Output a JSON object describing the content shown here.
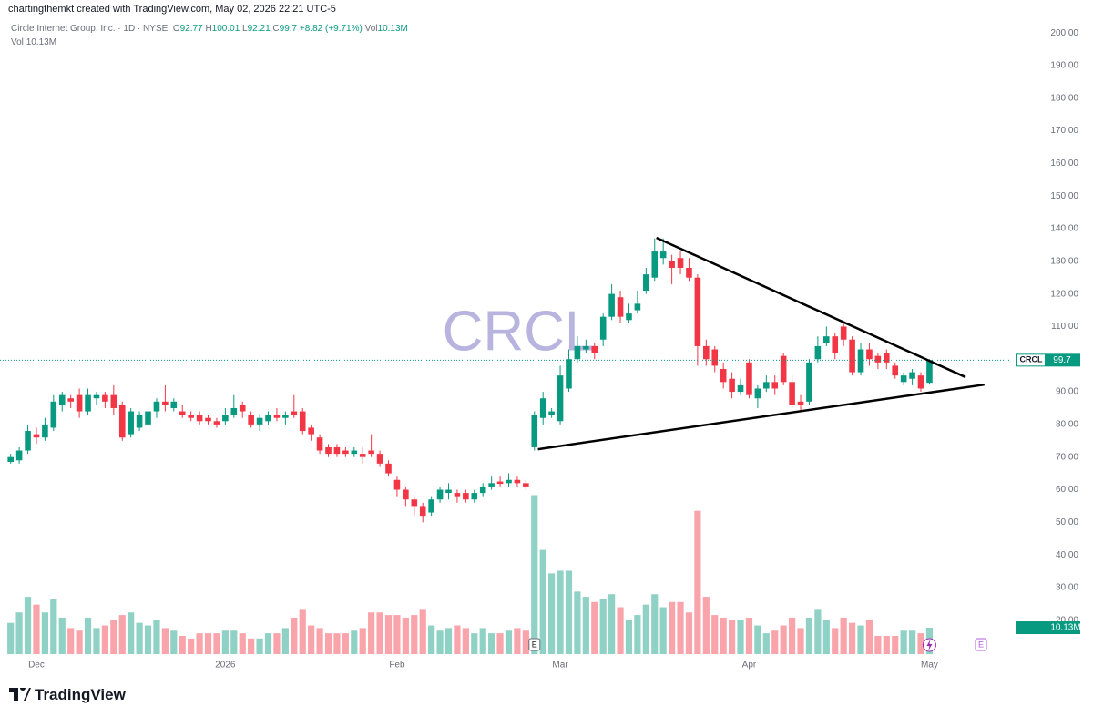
{
  "header": "chartingthemkt created with TradingView.com, May 02, 2026 22:21 UTC-5",
  "footer": "TradingView",
  "chart_data": {
    "type": "candlestick",
    "symbol": "CRCL",
    "title": "Circle Internet Group, Inc. · 1D · NYSE",
    "legend_prefixes": [
      "O",
      "H",
      "L",
      "C"
    ],
    "change": "+8.82 (+9.71%)",
    "categories": [
      null,
      null,
      null,
      "Dec",
      null,
      null,
      null,
      null,
      null,
      null,
      null,
      null,
      null,
      null,
      null,
      null,
      null,
      null,
      null,
      null,
      null,
      null,
      null,
      null,
      null,
      "2026",
      null,
      null,
      null,
      null,
      null,
      null,
      null,
      null,
      null,
      null,
      null,
      null,
      null,
      null,
      null,
      null,
      null,
      null,
      null,
      "Feb",
      null,
      null,
      null,
      null,
      null,
      null,
      null,
      null,
      null,
      null,
      null,
      null,
      null,
      null,
      null,
      null,
      null,
      null,
      "Mar",
      null,
      null,
      null,
      null,
      null,
      null,
      null,
      null,
      null,
      null,
      null,
      null,
      null,
      null,
      null,
      null,
      null,
      null,
      null,
      null,
      null,
      "Apr",
      null,
      null,
      null,
      null,
      null,
      null,
      null,
      null,
      null,
      null,
      null,
      null,
      null,
      null,
      null,
      null,
      null,
      null,
      null,
      null,
      "May"
    ],
    "open": [
      68.5,
      69,
      72,
      77,
      76,
      79,
      86,
      88,
      89,
      84,
      88,
      89,
      89,
      86,
      77,
      79,
      80,
      84,
      87,
      85,
      84,
      83,
      83,
      82,
      81,
      81,
      83,
      86,
      83,
      80,
      81,
      83,
      82,
      84,
      84,
      79,
      76,
      73,
      73,
      72,
      71,
      71,
      72,
      71,
      68,
      63,
      60,
      57,
      55,
      53,
      57,
      59,
      59,
      59,
      57,
      59,
      61,
      62.5,
      62,
      63,
      62,
      73,
      82,
      83,
      81,
      91,
      100,
      103,
      104,
      106,
      113,
      119,
      112,
      115,
      121,
      125,
      131,
      130,
      131,
      128,
      125,
      104,
      103,
      97,
      94,
      90,
      99,
      88,
      91,
      93,
      101,
      93,
      87,
      87,
      100,
      105,
      107,
      110,
      106,
      96,
      103,
      101,
      102,
      98,
      93,
      94,
      95,
      92.77
    ],
    "high": [
      71,
      73,
      80,
      79,
      82,
      89,
      90,
      89,
      91,
      91,
      90,
      90,
      92,
      87,
      85,
      84,
      86,
      88,
      92,
      88,
      86,
      84,
      84,
      83,
      82,
      85,
      89,
      87,
      84,
      83,
      84,
      85,
      84,
      89,
      85,
      80,
      77,
      74,
      74,
      73,
      73,
      73,
      77,
      72,
      69,
      64,
      61,
      58,
      56,
      58,
      61,
      62,
      60,
      60,
      60,
      62,
      64,
      64,
      65,
      64,
      63,
      84,
      90,
      85,
      98,
      103,
      107,
      106,
      105,
      114,
      123,
      121,
      117,
      121,
      128,
      137,
      137,
      132,
      133,
      131,
      126,
      106,
      104,
      99,
      96,
      94,
      100,
      92,
      95,
      95,
      102,
      95,
      89,
      100,
      107,
      110,
      108,
      111,
      107,
      105,
      105,
      102,
      103,
      99,
      96,
      97,
      96,
      100.01
    ],
    "low": [
      68,
      68,
      71,
      74,
      75,
      78,
      84,
      85,
      82,
      83,
      86,
      85,
      83,
      75,
      76,
      78,
      79,
      82,
      84,
      84,
      82,
      81,
      80,
      80,
      79,
      80,
      82,
      82,
      79,
      78,
      80,
      81,
      80,
      82,
      77,
      75,
      71,
      70,
      70,
      70,
      70,
      68,
      70,
      67,
      64,
      58,
      55,
      52,
      50,
      52,
      56,
      57,
      56,
      56,
      56,
      58,
      60,
      61,
      61,
      61,
      60,
      72,
      80,
      82,
      80,
      90,
      99,
      102,
      100,
      104,
      112,
      111,
      111,
      114,
      120,
      124,
      129,
      123,
      126,
      124,
      98,
      98,
      96,
      91,
      88,
      89,
      88,
      85,
      90,
      89,
      92,
      85,
      84,
      86,
      99,
      104,
      100,
      104,
      95,
      95,
      98,
      97,
      97,
      94,
      92,
      92,
      90,
      92.21
    ],
    "close": [
      70,
      72,
      78,
      76,
      80,
      87,
      89,
      87,
      84,
      89,
      89,
      87,
      85,
      76,
      84,
      83,
      84,
      87,
      86,
      87,
      83,
      82,
      81,
      81,
      80,
      83,
      85,
      84,
      80,
      82,
      83,
      82,
      83,
      83,
      78,
      77,
      72,
      71,
      71,
      71,
      72,
      70,
      71,
      68,
      65,
      60,
      57,
      55,
      52,
      57,
      60,
      60,
      58,
      57,
      59,
      61,
      62,
      61.8,
      63,
      62,
      61,
      83,
      88,
      84,
      95,
      100,
      104,
      104,
      102,
      113,
      120,
      113,
      114,
      117,
      126,
      133,
      133,
      128,
      128,
      125,
      104,
      100,
      98,
      93,
      90,
      92,
      89,
      91,
      93,
      91,
      93,
      86,
      86,
      99,
      104,
      107,
      102,
      106,
      96,
      103,
      100,
      99,
      99,
      95,
      95,
      96,
      91,
      99.7
    ],
    "volume": {
      "name": "Vol",
      "last_label": "10.13M",
      "values": [
        12,
        16,
        22,
        19,
        16,
        21,
        14,
        10,
        9,
        14,
        10,
        11,
        13,
        15,
        16,
        12,
        11,
        13,
        10,
        9,
        7,
        6,
        8,
        8,
        8,
        9,
        9,
        8,
        6,
        6,
        8,
        8,
        10,
        14,
        17,
        11,
        10,
        8,
        8,
        8,
        9,
        10,
        16,
        16,
        15,
        15,
        14,
        15,
        17,
        11,
        9,
        10,
        11,
        10,
        8,
        10,
        8,
        8,
        9,
        10,
        9,
        61,
        40,
        31,
        32,
        32,
        24,
        22,
        20,
        21,
        23,
        18,
        13,
        15,
        19,
        23,
        18,
        20,
        20,
        16,
        55,
        22,
        15,
        14,
        13,
        13,
        14,
        11,
        8,
        9,
        11,
        14,
        10,
        14,
        17,
        13,
        10,
        14,
        12,
        11,
        13,
        7,
        7,
        7,
        9,
        9,
        8,
        10.13
      ]
    },
    "up_color": "#089981",
    "down_color": "#f23645",
    "xlim": [
      -1.24,
      116.5
    ],
    "ylim": [
      9.6,
      204.5
    ],
    "volume_ylim": [
      0,
      244
    ],
    "yticks": [
      {
        "value": 20,
        "label": "20.00"
      },
      {
        "value": 30,
        "label": "30.00"
      },
      {
        "value": 40,
        "label": "40.00"
      },
      {
        "value": 50,
        "label": "50.00"
      },
      {
        "value": 60,
        "label": "60.00"
      },
      {
        "value": 70,
        "label": "70.00"
      },
      {
        "value": 80,
        "label": "80.00"
      },
      {
        "value": 90,
        "label": "90.00"
      },
      {
        "value": 100,
        "label": "100.00"
      },
      {
        "value": 110,
        "label": "110.00"
      },
      {
        "value": 120,
        "label": "120.00"
      },
      {
        "value": 130,
        "label": "130.00"
      },
      {
        "value": 140,
        "label": "140.00"
      },
      {
        "value": 150,
        "label": "150.00"
      },
      {
        "value": 160,
        "label": "160.00"
      },
      {
        "value": 170,
        "label": "170.00"
      },
      {
        "value": 180,
        "label": "180.00"
      },
      {
        "value": 190,
        "label": "190.00"
      },
      {
        "value": 200,
        "label": "200.00"
      }
    ],
    "grid": false,
    "trendlines": [
      {
        "x": [
          75.2,
          111.2
        ],
        "y": [
          137.2,
          94.5
        ]
      },
      {
        "x": [
          61.4,
          113.4
        ],
        "y": [
          72.4,
          92.2
        ]
      }
    ],
    "events": [
      {
        "label": "E",
        "x": 61
      },
      {
        "label": "E",
        "x": 113
      }
    ]
  }
}
